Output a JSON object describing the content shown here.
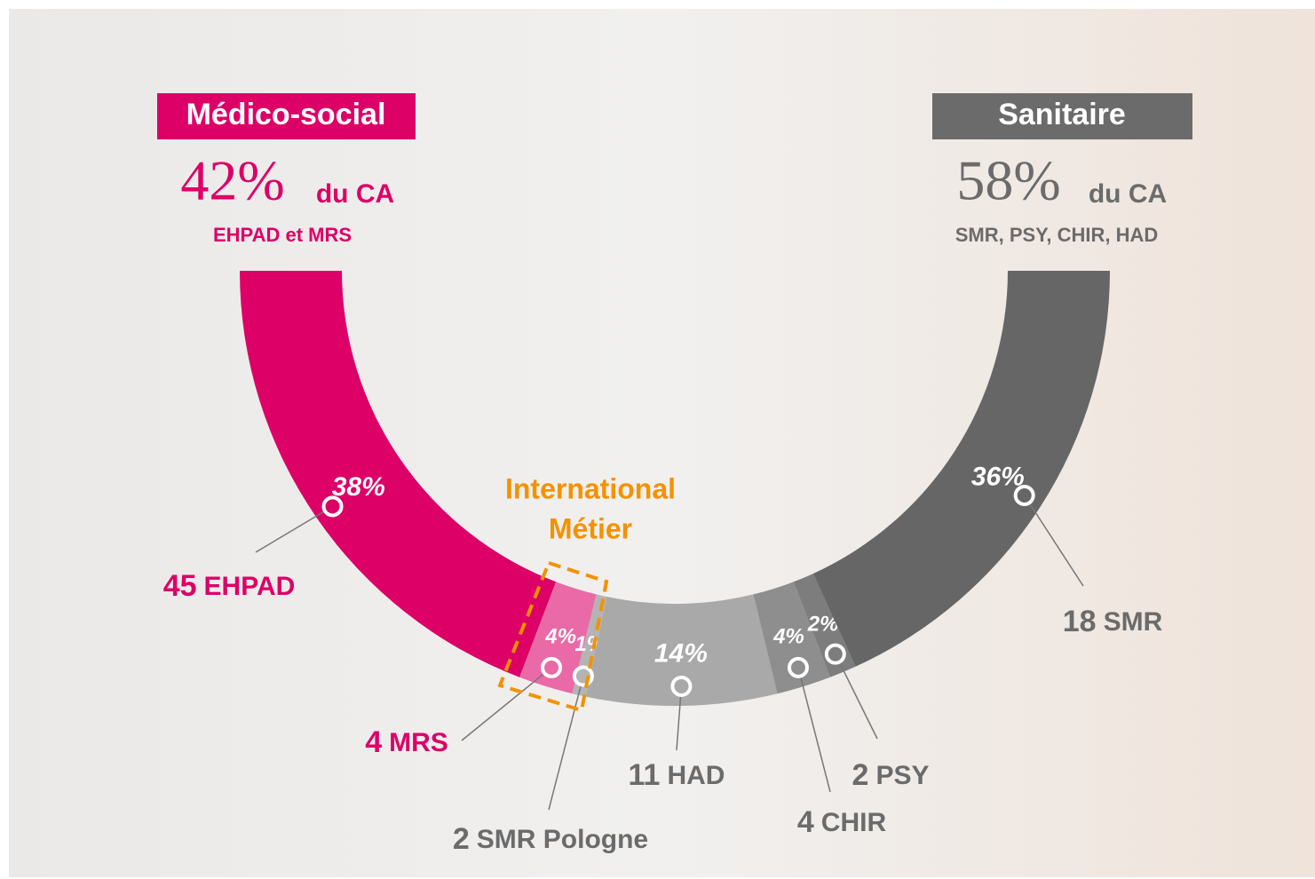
{
  "chart_data": {
    "type": "semi-donut",
    "groups": [
      {
        "name": "Médico-social",
        "share_label": "42%",
        "suffix": "du CA",
        "detail": "EHPAD et MRS",
        "color": "#dc0067"
      },
      {
        "name": "Sanitaire",
        "share_label": "58%",
        "suffix": "du CA",
        "detail": "SMR, PSY, CHIR, HAD",
        "color": "#6b6b6b"
      }
    ],
    "annotation": [
      "International",
      "Métier"
    ],
    "categories": [
      "EHPAD",
      "MRS",
      "SMR Pologne",
      "HAD",
      "CHIR",
      "PSY",
      "SMR"
    ],
    "values": [
      38,
      4,
      1,
      14,
      4,
      2,
      36
    ],
    "value_labels": [
      "38%",
      "4%",
      "1%",
      "14%",
      "4%",
      "2%",
      "36%"
    ],
    "counts": [
      45,
      4,
      2,
      11,
      4,
      2,
      18
    ],
    "colors": [
      "#dc0067",
      "#e96aa6",
      "#b4b4b4",
      "#a9a9a9",
      "#8e8e8e",
      "#7d7d7d",
      "#666666"
    ]
  }
}
